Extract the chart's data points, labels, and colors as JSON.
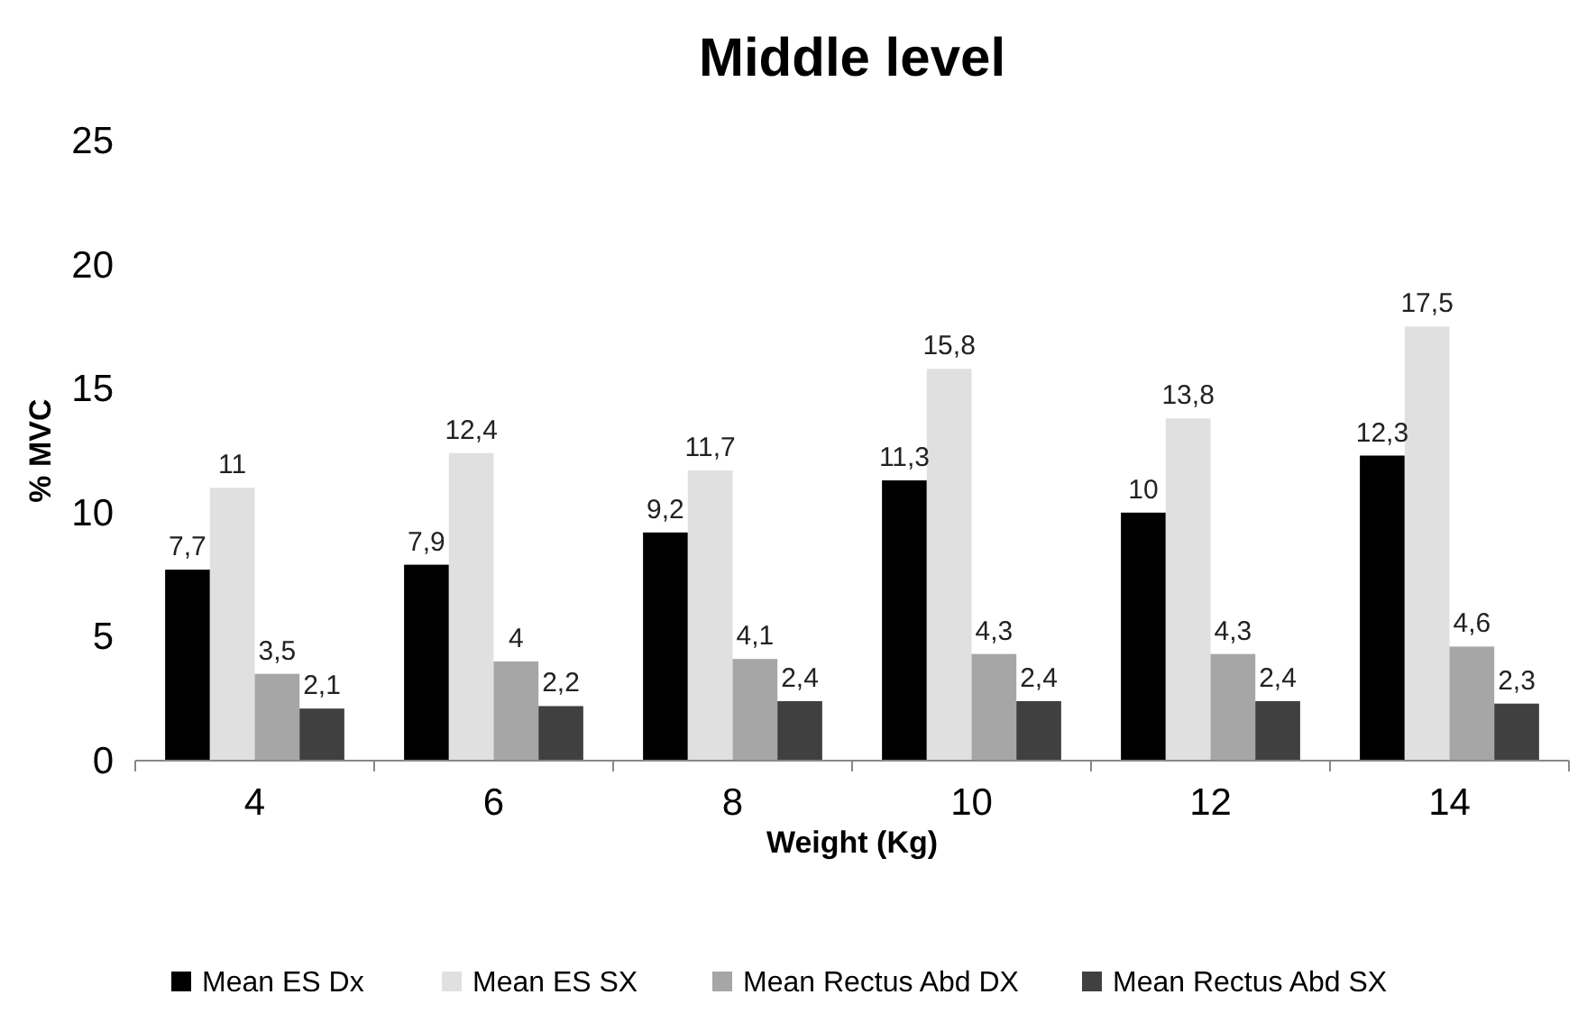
{
  "chart_data": {
    "type": "bar",
    "title": "Middle level",
    "xlabel": "Weight (Kg)",
    "ylabel": "% MVC",
    "categories": [
      "4",
      "6",
      "8",
      "10",
      "12",
      "14"
    ],
    "series": [
      {
        "name": "Mean ES Dx",
        "color": "#000000",
        "values": [
          7.7,
          7.9,
          9.2,
          11.3,
          10,
          12.3
        ],
        "value_labels": [
          "7,7",
          "7,9",
          "9,2",
          "11,3",
          "10",
          "12,3"
        ]
      },
      {
        "name": "Mean ES SX",
        "color": "#e0e0e0",
        "values": [
          11,
          12.4,
          11.7,
          15.8,
          13.8,
          17.5
        ],
        "value_labels": [
          "11",
          "12,4",
          "11,7",
          "15,8",
          "13,8",
          "17,5"
        ]
      },
      {
        "name": "Mean Rectus Abd DX",
        "color": "#a6a6a6",
        "values": [
          3.5,
          4,
          4.1,
          4.3,
          4.3,
          4.6
        ],
        "value_labels": [
          "3,5",
          "4",
          "4,1",
          "4,3",
          "4,3",
          "4,6"
        ]
      },
      {
        "name": "Mean Rectus Abd SX",
        "color": "#404040",
        "values": [
          2.1,
          2.2,
          2.4,
          2.4,
          2.4,
          2.3
        ],
        "value_labels": [
          "2,1",
          "2,2",
          "2,4",
          "2,4",
          "2,4",
          "2,3"
        ]
      }
    ],
    "ylim": [
      0,
      25
    ],
    "yticks": [
      0,
      5,
      10,
      15,
      20,
      25
    ],
    "grid": false,
    "legend": "bottom"
  }
}
